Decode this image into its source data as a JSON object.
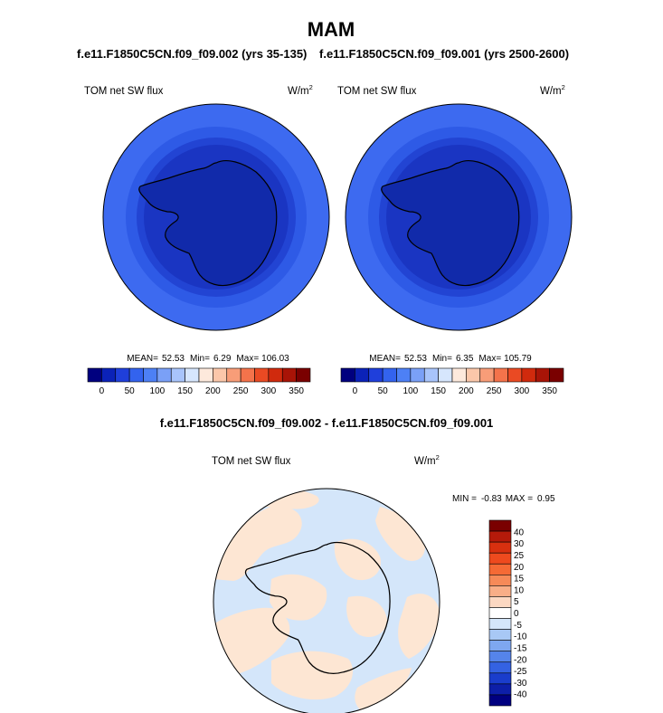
{
  "chart_data": [
    {
      "type": "heatmap",
      "title": "MAM",
      "subtitle": "f.e11.F1850C5CN.f09_f09.002 (yrs 35-135)",
      "left_label": "TOM net SW flux",
      "units": "W/m",
      "units_sup": "2",
      "stats": {
        "mean_label": "MEAN=",
        "mean": "52.53",
        "min_label": "Min=",
        "min": "6.29",
        "max_label": "Max=",
        "max": "106.03"
      },
      "colorbar": {
        "colors": [
          "#00007f",
          "#0b22b8",
          "#1f3fdb",
          "#3363ee",
          "#4d80f5",
          "#7aa0f7",
          "#a8c4fb",
          "#d6e6fd",
          "#fde9dc",
          "#fbc7aa",
          "#f89d78",
          "#f4734b",
          "#ea4a23",
          "#d02a0d",
          "#a81407",
          "#7a0000"
        ],
        "tick_labels": [
          "0",
          "50",
          "100",
          "150",
          "200",
          "250",
          "300",
          "350"
        ]
      },
      "field": {
        "ring_colors": [
          "#3d6af0",
          "#2e5ae6",
          "#2244d3",
          "#1a35c2",
          "#112aaa"
        ]
      }
    },
    {
      "type": "heatmap",
      "subtitle": "f.e11.F1850C5CN.f09_f09.001 (yrs 2500-2600)",
      "left_label": "TOM net SW flux",
      "units": "W/m",
      "units_sup": "2",
      "stats": {
        "mean_label": "MEAN=",
        "mean": "52.53",
        "min_label": "Min=",
        "min": "6.35",
        "max_label": "Max=",
        "max": "105.79"
      },
      "colorbar": {
        "colors": [
          "#00007f",
          "#0b22b8",
          "#1f3fdb",
          "#3363ee",
          "#4d80f5",
          "#7aa0f7",
          "#a8c4fb",
          "#d6e6fd",
          "#fde9dc",
          "#fbc7aa",
          "#f89d78",
          "#f4734b",
          "#ea4a23",
          "#d02a0d",
          "#a81407",
          "#7a0000"
        ],
        "tick_labels": [
          "0",
          "50",
          "100",
          "150",
          "200",
          "250",
          "300",
          "350"
        ]
      },
      "field": {
        "ring_colors": [
          "#3d6af0",
          "#2e5ae6",
          "#2244d3",
          "#1a35c2",
          "#112aaa"
        ]
      }
    },
    {
      "type": "heatmap",
      "subtitle": "f.e11.F1850C5CN.f09_f09.002 - f.e11.F1850C5CN.f09_f09.001",
      "left_label": "TOM net SW flux",
      "units": "W/m",
      "units_sup": "2",
      "minmax": {
        "min_label": "MIN =",
        "min": "-0.83",
        "max_label": "MAX =",
        "max": "0.95"
      },
      "colorbar": {
        "colors": [
          "#7a0000",
          "#b51a0a",
          "#d8300f",
          "#ee4a1e",
          "#f56a35",
          "#f68a58",
          "#f8ae87",
          "#fbd8c2",
          "#ffffff",
          "#d4e6fa",
          "#a8c8f5",
          "#7ea7f0",
          "#5584ea",
          "#3462e2",
          "#1a3dcc",
          "#0d1fa8",
          "#000080"
        ],
        "tick_labels": [
          "40",
          "30",
          "25",
          "20",
          "15",
          "10",
          "5",
          "0",
          "-5",
          "-10",
          "-15",
          "-20",
          "-25",
          "-30",
          "-40"
        ]
      },
      "field": {
        "base_color": "#d4e6fa",
        "patch_color": "#fde6d3"
      }
    }
  ]
}
